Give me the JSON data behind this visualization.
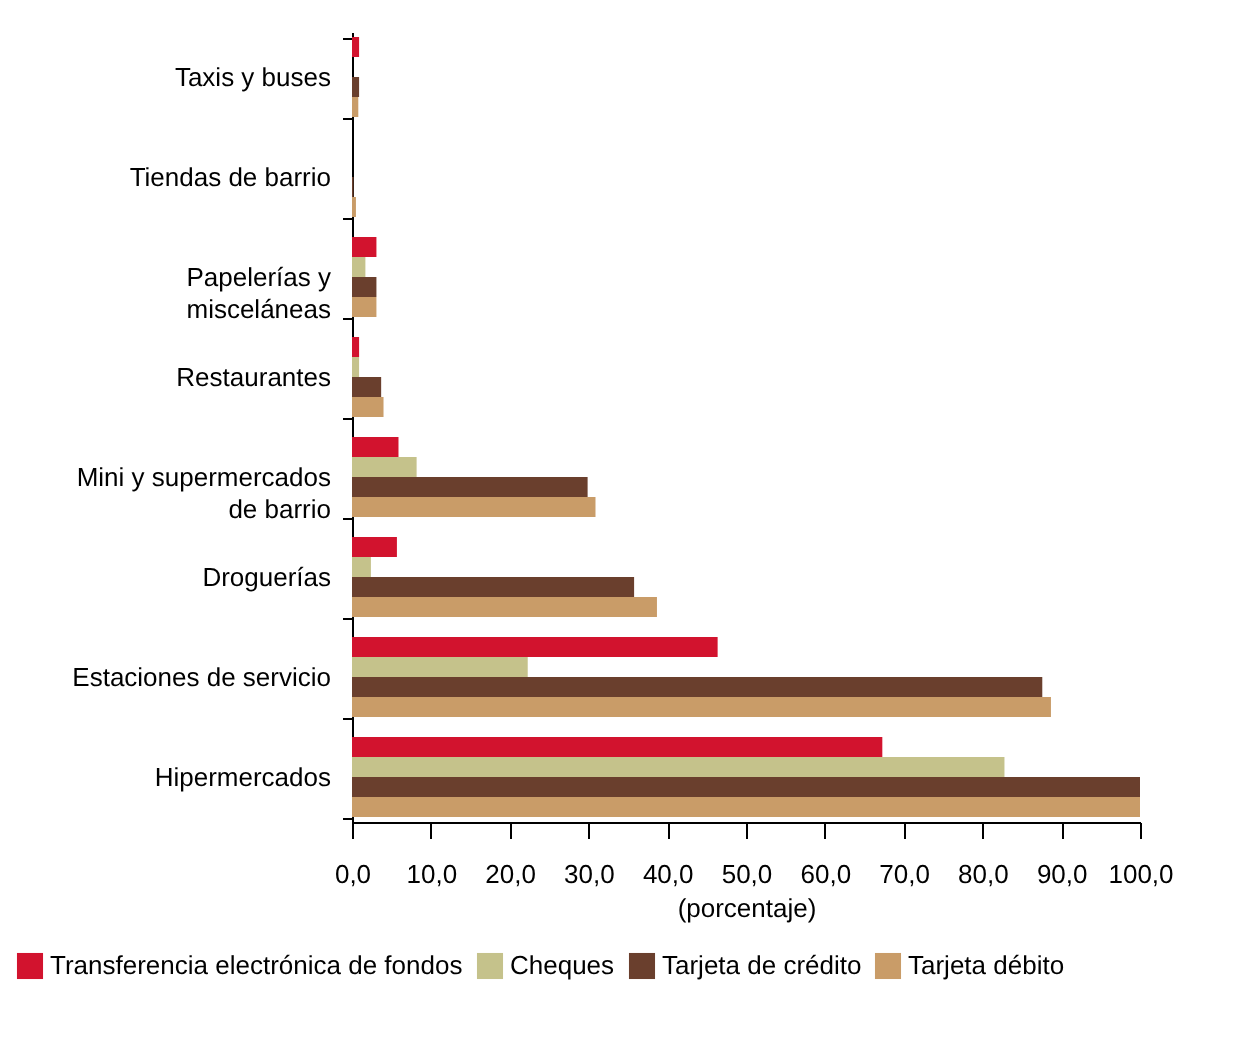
{
  "chart_data": {
    "type": "bar",
    "orientation": "horizontal",
    "xlabel": "(porcentaje)",
    "categories": [
      "Taxis y buses",
      "Tiendas de barrio",
      "Papelerías y misceláneas",
      "Restaurantes",
      "Mini y supermercados de barrio",
      "Droguerías",
      "Estaciones de servicio",
      "Hipermercados"
    ],
    "series": [
      {
        "name": "Transferencia electrónica de fondos",
        "color": "#d2132e",
        "values": [
          0.9,
          0,
          3.1,
          0.9,
          5.9,
          5.7,
          46.4,
          67.3
        ]
      },
      {
        "name": "Cheques",
        "color": "#c5c28b",
        "values": [
          0,
          0,
          1.7,
          0.9,
          8.2,
          2.4,
          22.3,
          82.8
        ]
      },
      {
        "name": "Tarjeta de crédito",
        "color": "#6a3f2d",
        "values": [
          0.9,
          0.2,
          3.1,
          3.7,
          29.9,
          35.8,
          87.6,
          100
        ]
      },
      {
        "name": "Tarjeta débito",
        "color": "#c99c68",
        "values": [
          0.8,
          0.5,
          3.1,
          4.0,
          30.9,
          38.7,
          88.7,
          100
        ]
      }
    ],
    "xlim": [
      0,
      100
    ],
    "xticks": [
      {
        "value": 0,
        "label": "0,0"
      },
      {
        "value": 10,
        "label": "10,0"
      },
      {
        "value": 20,
        "label": "20,0"
      },
      {
        "value": 30,
        "label": "30,0"
      },
      {
        "value": 40,
        "label": "40,0"
      },
      {
        "value": 50,
        "label": "50,0"
      },
      {
        "value": 60,
        "label": "60,0"
      },
      {
        "value": 70,
        "label": "70,0"
      },
      {
        "value": 80,
        "label": "80,0"
      },
      {
        "value": 90,
        "label": "90,0"
      },
      {
        "value": 100,
        "label": "100,0"
      }
    ],
    "grid": false,
    "legend": "bottom"
  }
}
